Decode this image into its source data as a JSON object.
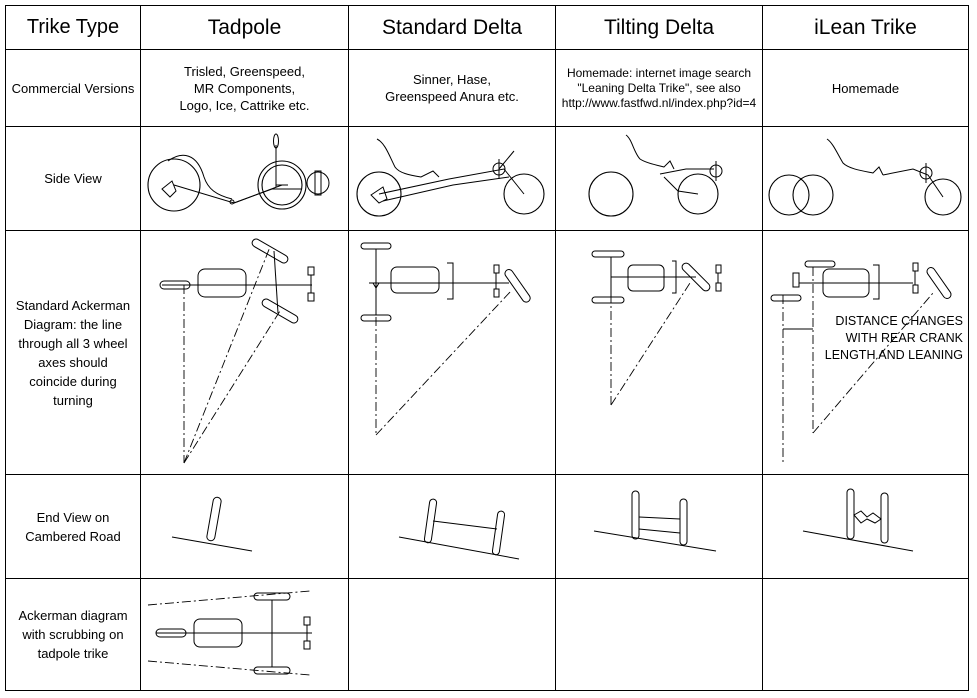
{
  "header": {
    "trike_type": "Trike Type",
    "tadpole": "Tadpole",
    "standard_delta": "Standard Delta",
    "tilting_delta": "Tilting Delta",
    "ilean_trike": "iLean Trike"
  },
  "rows": {
    "commercial": {
      "label": "Commercial Versions",
      "tadpole": [
        "Trisled, Greenspeed,",
        "MR Components,",
        "Logo, Ice, Cattrike etc."
      ],
      "standard_delta": [
        "Sinner, Hase,",
        "Greenspeed Anura etc."
      ],
      "tilting_delta": [
        "Homemade: internet image search",
        "\"Leaning Delta Trike\", see also",
        "http://www.fastfwd.nl/index.php?id=4"
      ],
      "ilean_trike": "Homemade"
    },
    "side_view": {
      "label": "Side View"
    },
    "ackerman": {
      "label": [
        "Standard Ackerman",
        "Diagram: the line",
        "through all 3 wheel",
        "axes should",
        "coincide during",
        "turning"
      ],
      "annotation": [
        "DISTANCE CHANGES",
        "WITH REAR CRANK",
        "LENGTH AND LEANING"
      ]
    },
    "end_view": {
      "label": [
        "End View on",
        "Cambered Road"
      ]
    },
    "scrub": {
      "label": [
        "Ackerman diagram",
        "with scrubbing on",
        "tadpole trike"
      ]
    }
  }
}
